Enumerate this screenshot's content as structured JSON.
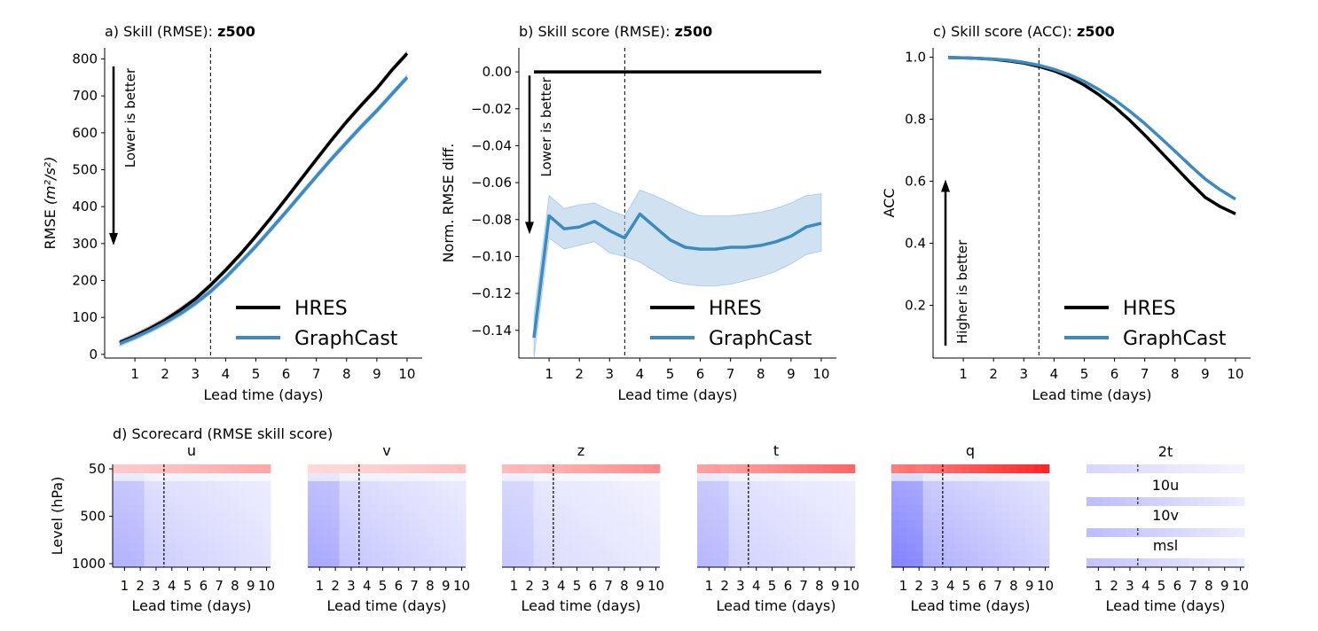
{
  "colors": {
    "hres": "#000000",
    "graphcast": "#3b8bc2",
    "band": "#a9cbe6",
    "pos": "#ff0000",
    "neg": "#0000ff"
  },
  "chart_data": [
    {
      "id": "a",
      "type": "line",
      "title_prefix": "a) Skill (RMSE): ",
      "title_bold": "z500",
      "xlabel": "Lead time (days)",
      "ylabel": "RMSE",
      "ylabel_unit": "(m²/s²)",
      "xlim": [
        0,
        10.5
      ],
      "ylim": [
        -10,
        830
      ],
      "xticks": [
        1,
        2,
        3,
        4,
        5,
        6,
        7,
        8,
        9,
        10
      ],
      "yticks": [
        0,
        100,
        200,
        300,
        400,
        500,
        600,
        700,
        800
      ],
      "ytick_labels": [
        "0",
        "100",
        "200",
        "300",
        "400",
        "500",
        "600",
        "700",
        "800"
      ],
      "vline": 3.5,
      "annotation": {
        "text": "Lower is better",
        "direction": "down",
        "y_from": 780,
        "y_to": 300
      },
      "x": [
        0.5,
        1,
        1.5,
        2,
        2.5,
        3,
        3.5,
        4,
        4.5,
        5,
        5.5,
        6,
        6.5,
        7,
        7.5,
        8,
        8.5,
        9,
        9.5,
        10
      ],
      "series": [
        {
          "name": "HRES",
          "color_key": "hres",
          "values": [
            32,
            50,
            70,
            93,
            120,
            150,
            187,
            228,
            272,
            320,
            370,
            422,
            475,
            528,
            580,
            630,
            676,
            720,
            770,
            815
          ],
          "band": 8
        },
        {
          "name": "GraphCast",
          "color_key": "graphcast",
          "values": [
            29,
            46,
            65,
            86,
            110,
            138,
            170,
            208,
            250,
            293,
            339,
            386,
            434,
            482,
            529,
            574,
            618,
            660,
            705,
            750
          ],
          "band": 7
        }
      ],
      "legend": "lower right"
    },
    {
      "id": "b",
      "type": "line",
      "title_prefix": "b) Skill score (RMSE): ",
      "title_bold": "z500",
      "xlabel": "Lead time (days)",
      "ylabel": "Norm. RMSE diff.",
      "xlim": [
        0,
        10.5
      ],
      "ylim": [
        -0.155,
        0.013
      ],
      "xticks": [
        1,
        2,
        3,
        4,
        5,
        6,
        7,
        8,
        9,
        10
      ],
      "yticks": [
        0,
        -0.02,
        -0.04,
        -0.06,
        -0.08,
        -0.1,
        -0.12,
        -0.14
      ],
      "ytick_labels": [
        "0.00",
        "−0.02",
        "−0.04",
        "−0.06",
        "−0.08",
        "−0.10",
        "−0.12",
        "−0.14"
      ],
      "vline": 3.5,
      "annotation": {
        "text": "Lower is better",
        "direction": "down",
        "y_from": -0.002,
        "y_to": -0.087
      },
      "x": [
        0.5,
        1,
        1.5,
        2,
        2.5,
        3,
        3.5,
        4,
        4.5,
        5,
        5.5,
        6,
        6.5,
        7,
        7.5,
        8,
        8.5,
        9,
        9.5,
        10
      ],
      "series": [
        {
          "name": "HRES",
          "color_key": "hres",
          "values": [
            0,
            0,
            0,
            0,
            0,
            0,
            0,
            0,
            0,
            0,
            0,
            0,
            0,
            0,
            0,
            0,
            0,
            0,
            0,
            0
          ]
        },
        {
          "name": "GraphCast",
          "color_key": "graphcast",
          "values": [
            -0.144,
            -0.078,
            -0.085,
            -0.084,
            -0.081,
            -0.086,
            -0.09,
            -0.077,
            -0.084,
            -0.091,
            -0.095,
            -0.096,
            -0.096,
            -0.095,
            -0.095,
            -0.094,
            -0.092,
            -0.089,
            -0.084,
            -0.082
          ],
          "band_lower": [
            -0.155,
            -0.09,
            -0.096,
            -0.094,
            -0.092,
            -0.098,
            -0.1,
            -0.103,
            -0.108,
            -0.113,
            -0.115,
            -0.116,
            -0.116,
            -0.115,
            -0.113,
            -0.111,
            -0.108,
            -0.104,
            -0.099,
            -0.097
          ],
          "band_upper": [
            -0.132,
            -0.067,
            -0.074,
            -0.072,
            -0.071,
            -0.075,
            -0.078,
            -0.064,
            -0.067,
            -0.071,
            -0.075,
            -0.078,
            -0.078,
            -0.078,
            -0.077,
            -0.076,
            -0.074,
            -0.071,
            -0.067,
            -0.066
          ]
        }
      ],
      "legend": "lower right"
    },
    {
      "id": "c",
      "type": "line",
      "title_prefix": "c) Skill score (ACC): ",
      "title_bold": "z500",
      "xlabel": "Lead time (days)",
      "ylabel": "ACC",
      "xlim": [
        0,
        10.5
      ],
      "ylim": [
        0.03,
        1.03
      ],
      "xticks": [
        1,
        2,
        3,
        4,
        5,
        6,
        7,
        8,
        9,
        10
      ],
      "yticks": [
        0.2,
        0.4,
        0.6,
        0.8,
        1.0
      ],
      "ytick_labels": [
        "0.2",
        "0.4",
        "0.6",
        "0.8",
        "1.0"
      ],
      "vline": 3.5,
      "annotation": {
        "text": "Higher is better",
        "direction": "up",
        "y_from": 0.07,
        "y_to": 0.6
      },
      "x": [
        0.5,
        1,
        1.5,
        2,
        2.5,
        3,
        3.5,
        4,
        4.5,
        5,
        5.5,
        6,
        6.5,
        7,
        7.5,
        8,
        8.5,
        9,
        9.5,
        10
      ],
      "series": [
        {
          "name": "HRES",
          "color_key": "hres",
          "values": [
            0.999,
            0.998,
            0.996,
            0.993,
            0.988,
            0.981,
            0.97,
            0.956,
            0.936,
            0.91,
            0.878,
            0.84,
            0.797,
            0.749,
            0.698,
            0.647,
            0.596,
            0.548,
            0.518,
            0.495
          ]
        },
        {
          "name": "GraphCast",
          "color_key": "graphcast",
          "values": [
            0.999,
            0.998,
            0.996,
            0.994,
            0.99,
            0.983,
            0.974,
            0.961,
            0.944,
            0.922,
            0.895,
            0.863,
            0.826,
            0.786,
            0.742,
            0.697,
            0.651,
            0.607,
            0.572,
            0.542
          ]
        }
      ],
      "legend": "lower right"
    },
    {
      "id": "d",
      "type": "heatmap",
      "title": "d) Scorecard (RMSE skill score)",
      "xlabel": "Lead time (days)",
      "ylabel": "Level (hPa)",
      "ytick_labels": [
        "50",
        "500",
        "1000"
      ],
      "xticks": [
        1,
        2,
        3,
        4,
        5,
        6,
        7,
        8,
        9,
        10
      ],
      "xtick_labels": [
        "1",
        "2",
        "3",
        "4",
        "5",
        "6",
        "7",
        "8",
        "9",
        "10"
      ],
      "vline": 3.5,
      "n_leads": 20,
      "variables": [
        {
          "name": "u",
          "top": 0.35,
          "surface": -0.22,
          "deep": -0.2
        },
        {
          "name": "v",
          "top": 0.25,
          "surface": -0.25,
          "deep": -0.22
        },
        {
          "name": "z",
          "top": 0.45,
          "surface": -0.16,
          "deep": -0.14
        },
        {
          "name": "t",
          "top": 0.6,
          "surface": -0.2,
          "deep": -0.2
        },
        {
          "name": "q",
          "top": 0.85,
          "surface": -0.35,
          "deep": -0.33
        }
      ],
      "surface_variables": [
        {
          "name": "2t",
          "value": -0.12
        },
        {
          "name": "10u",
          "value": -0.2
        },
        {
          "name": "10v",
          "value": -0.2
        },
        {
          "name": "msl",
          "value": -0.18
        }
      ]
    }
  ]
}
